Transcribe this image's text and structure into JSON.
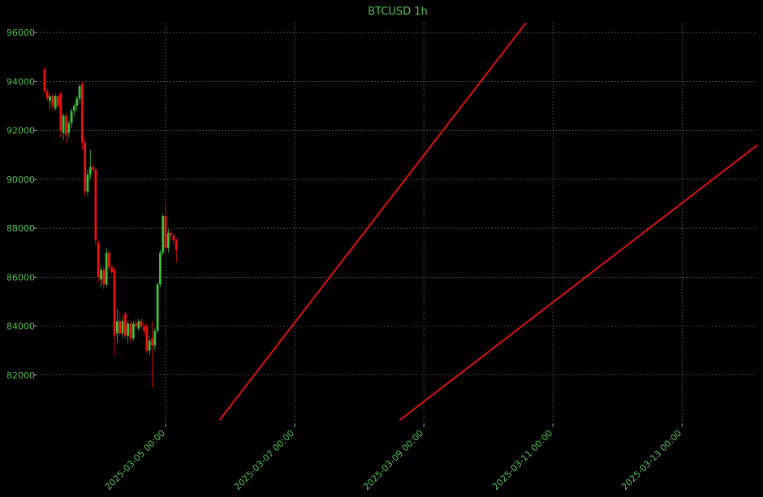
{
  "chart_data": {
    "type": "candlestick",
    "title": "BTCUSD 1h",
    "x": [
      "2025-03-03 03:00",
      "2025-03-03 04:00",
      "2025-03-03 05:00",
      "2025-03-03 06:00",
      "2025-03-03 07:00",
      "2025-03-03 08:00",
      "2025-03-03 09:00",
      "2025-03-03 10:00",
      "2025-03-03 11:00",
      "2025-03-03 12:00",
      "2025-03-03 13:00",
      "2025-03-03 14:00",
      "2025-03-03 15:00",
      "2025-03-03 16:00",
      "2025-03-03 17:00",
      "2025-03-03 18:00",
      "2025-03-03 19:00",
      "2025-03-03 20:00",
      "2025-03-03 21:00",
      "2025-03-03 22:00",
      "2025-03-03 23:00",
      "2025-03-04 00:00",
      "2025-03-04 01:00",
      "2025-03-04 02:00",
      "2025-03-04 03:00",
      "2025-03-04 04:00",
      "2025-03-04 05:00",
      "2025-03-04 06:00",
      "2025-03-04 07:00",
      "2025-03-04 08:00",
      "2025-03-04 09:00",
      "2025-03-04 10:00",
      "2025-03-04 11:00",
      "2025-03-04 12:00",
      "2025-03-04 13:00",
      "2025-03-04 14:00",
      "2025-03-04 15:00",
      "2025-03-04 16:00",
      "2025-03-04 17:00",
      "2025-03-04 18:00",
      "2025-03-04 19:00",
      "2025-03-04 20:00",
      "2025-03-04 21:00",
      "2025-03-04 22:00",
      "2025-03-04 23:00",
      "2025-03-05 00:00",
      "2025-03-05 01:00",
      "2025-03-05 02:00",
      "2025-03-05 03:00",
      "2025-03-05 04:00"
    ],
    "open": [
      94500,
      93600,
      93200,
      93400,
      92900,
      93400,
      93500,
      91900,
      92600,
      91900,
      92300,
      92800,
      93000,
      93300,
      93900,
      91500,
      89500,
      90200,
      90500,
      90400,
      87400,
      85900,
      86300,
      85700,
      87000,
      86400,
      86300,
      83700,
      84200,
      83700,
      84500,
      83600,
      84100,
      83500,
      84100,
      83900,
      84200,
      84000,
      84000,
      83000,
      83500,
      83200,
      83800,
      85700,
      87000,
      88500,
      87200,
      87800,
      87700,
      87500
    ],
    "high": [
      94600,
      93700,
      93500,
      93500,
      93500,
      93500,
      93600,
      92700,
      92700,
      92400,
      92900,
      93100,
      93400,
      93900,
      94000,
      91700,
      90400,
      91200,
      90600,
      90500,
      87500,
      86500,
      86400,
      87200,
      87100,
      86500,
      86400,
      84700,
      84600,
      84400,
      84600,
      84200,
      84200,
      84200,
      84300,
      84300,
      84300,
      84100,
      84100,
      83600,
      84200,
      83900,
      85800,
      87100,
      88600,
      89100,
      88000,
      87900,
      87800,
      87600
    ],
    "low": [
      93500,
      93200,
      92900,
      92800,
      92800,
      92900,
      91700,
      91600,
      91500,
      91700,
      92100,
      92600,
      92800,
      93100,
      91200,
      89300,
      89300,
      90000,
      90300,
      87300,
      85800,
      85600,
      85500,
      85600,
      86300,
      86100,
      82800,
      83300,
      83600,
      83500,
      83500,
      83300,
      83300,
      83400,
      83900,
      83800,
      83900,
      83600,
      82900,
      82800,
      81500,
      83000,
      83700,
      85600,
      86900,
      87000,
      87000,
      87500,
      87300,
      86600
    ],
    "close": [
      93600,
      93300,
      93400,
      93000,
      93400,
      93000,
      92000,
      92600,
      91800,
      92300,
      92800,
      93000,
      93300,
      93800,
      91500,
      89500,
      90200,
      90500,
      90400,
      87500,
      86000,
      86300,
      85700,
      87000,
      86400,
      86200,
      83600,
      84200,
      83700,
      84200,
      83600,
      84100,
      83500,
      84100,
      84000,
      84200,
      84000,
      83800,
      83000,
      83400,
      83200,
      83800,
      85700,
      87000,
      88500,
      87200,
      87800,
      87700,
      87500,
      87100
    ],
    "up_color": "#3cbf3c",
    "down_color": "#ee1111",
    "lines": [
      {
        "color": "#dd1111",
        "x": [
          "2025-03-05 20:00",
          "2025-03-10 14:00"
        ],
        "values": [
          80150,
          96400
        ]
      },
      {
        "color": "#dd1111",
        "x": [
          "2025-03-08 15:00",
          "2025-03-14 04:00"
        ],
        "values": [
          80150,
          91400
        ]
      }
    ],
    "xlim": [
      "2025-03-03 00:00",
      "2025-03-14 04:00"
    ],
    "xticks": [
      "2025-03-05 00:00",
      "2025-03-07 00:00",
      "2025-03-09 00:00",
      "2025-03-11 00:00",
      "2025-03-13 00:00"
    ],
    "ylim": [
      80000,
      96400
    ],
    "yticks": [
      82000,
      84000,
      86000,
      88000,
      90000,
      92000,
      94000,
      96000
    ],
    "grid": true
  }
}
